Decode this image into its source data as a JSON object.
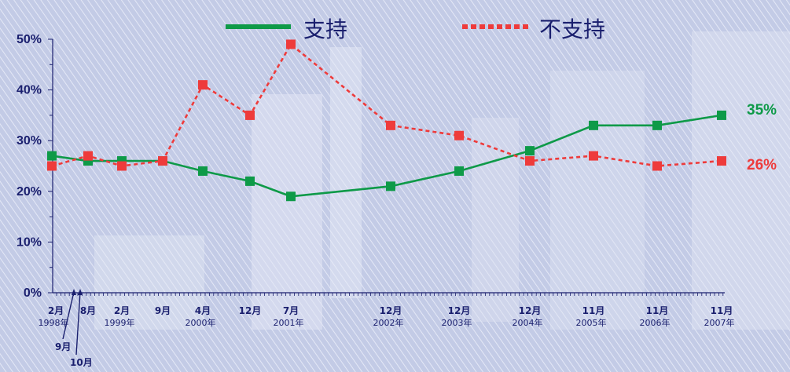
{
  "chart_data": {
    "type": "line",
    "ylim": [
      0,
      50
    ],
    "y_ticks": [
      "0%",
      "10%",
      "20%",
      "30%",
      "40%",
      "50%"
    ],
    "x": [
      {
        "month": "2月",
        "year": "1998年"
      },
      {
        "month": "9月",
        "year": ""
      },
      {
        "month": "10月",
        "year": ""
      },
      {
        "month": "8月",
        "year": ""
      },
      {
        "month": "2月",
        "year": "1999年"
      },
      {
        "month": "9月",
        "year": ""
      },
      {
        "month": "4月",
        "year": "2000年"
      },
      {
        "month": "12月",
        "year": ""
      },
      {
        "month": "7月",
        "year": "2001年"
      },
      {
        "month": "12月",
        "year": "2002年"
      },
      {
        "month": "12月",
        "year": "2003年"
      },
      {
        "month": "12月",
        "year": "2004年"
      },
      {
        "month": "11月",
        "year": "2005年"
      },
      {
        "month": "11月",
        "year": "2006年"
      },
      {
        "month": "11月",
        "year": "2007年"
      }
    ],
    "series": [
      {
        "name": "支持",
        "color": "#0e9a48",
        "style": "solid",
        "values": [
          27,
          null,
          null,
          26,
          26,
          26,
          24,
          22,
          19,
          21,
          24,
          28,
          33,
          33,
          35
        ],
        "end_label": "35%"
      },
      {
        "name": "不支持",
        "color": "#ee3b3b",
        "style": "dotted",
        "values": [
          25,
          null,
          null,
          27,
          25,
          26,
          41,
          35,
          49,
          33,
          31,
          26,
          27,
          25,
          26
        ],
        "end_label": "26%"
      }
    ],
    "legend_position": "top"
  }
}
